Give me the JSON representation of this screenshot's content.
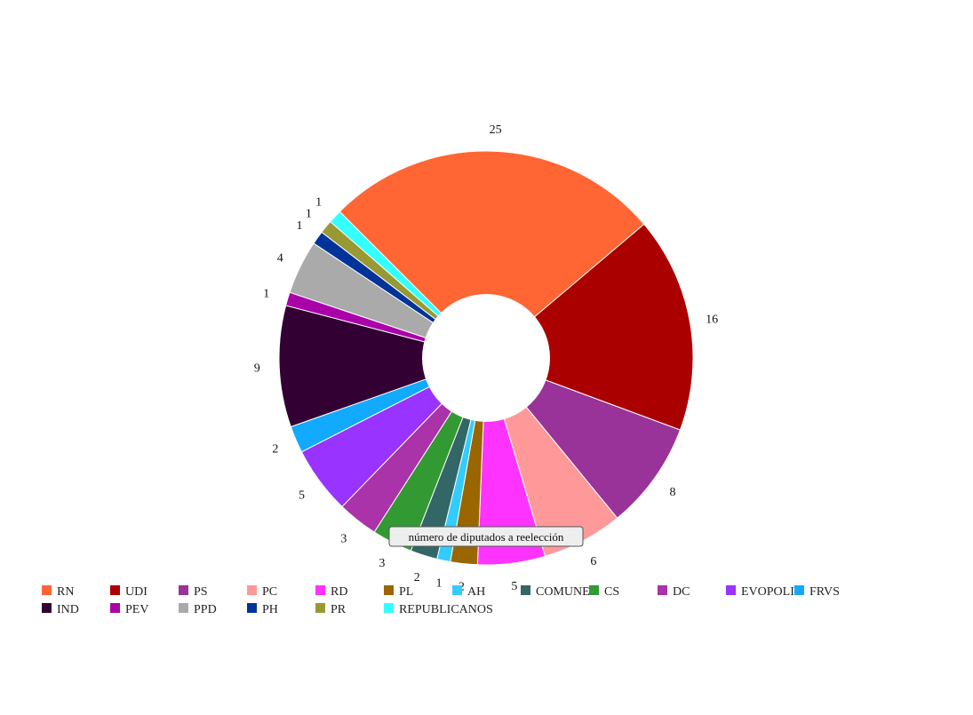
{
  "chart_data": {
    "type": "pie",
    "donut": true,
    "legend_position": "bottom",
    "tooltip": "número de diputados a reelección",
    "slices": [
      {
        "name": "RN",
        "value": 25,
        "color": "#ff6633"
      },
      {
        "name": "UDI",
        "value": 16,
        "color": "#aa0000"
      },
      {
        "name": "PS",
        "value": 8,
        "color": "#993399"
      },
      {
        "name": "PC",
        "value": 6,
        "color": "#ff9999"
      },
      {
        "name": "RD",
        "value": 5,
        "color": "#ff33ff"
      },
      {
        "name": "PL",
        "value": 2,
        "color": "#996600"
      },
      {
        "name": "AH",
        "value": 1,
        "color": "#33ccff"
      },
      {
        "name": "COMUNES",
        "value": 2,
        "color": "#336666"
      },
      {
        "name": "CS",
        "value": 3,
        "color": "#339933"
      },
      {
        "name": "DC",
        "value": 3,
        "color": "#aa33aa"
      },
      {
        "name": "EVOPOLI",
        "value": 5,
        "color": "#9933ff"
      },
      {
        "name": "FRVS",
        "value": 2,
        "color": "#11aaff"
      },
      {
        "name": "IND",
        "value": 9,
        "color": "#330033"
      },
      {
        "name": "PEV",
        "value": 1,
        "color": "#aa00aa"
      },
      {
        "name": "PPD",
        "value": 4,
        "color": "#aaaaaa"
      },
      {
        "name": "PH",
        "value": 1,
        "color": "#003399"
      },
      {
        "name": "PR",
        "value": 1,
        "color": "#999933"
      },
      {
        "name": "REPUBLICANOS",
        "value": 1,
        "color": "#33ffff"
      }
    ]
  }
}
